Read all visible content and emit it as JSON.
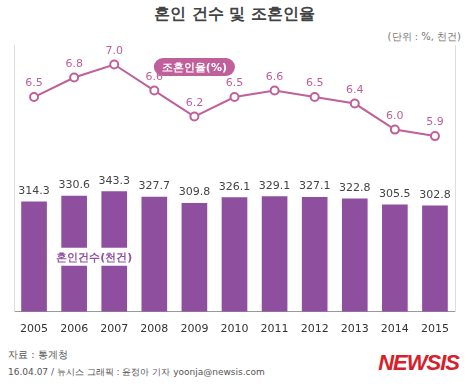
{
  "chart_data": {
    "type": "bar",
    "title": "혼인 건수 및 조혼인율",
    "unit_note": "(단위 : %, 천건)",
    "source": "자료 : 통계청",
    "credit": "16.04.07 / 뉴시스 그래픽 : 윤정아 기자 yoonja@newsis.com",
    "logo": "NEWSIS",
    "categories": [
      "2005",
      "2006",
      "2007",
      "2008",
      "2009",
      "2010",
      "2011",
      "2012",
      "2013",
      "2014",
      "2015"
    ],
    "series": [
      {
        "name": "혼인건수(천건)",
        "type": "bar",
        "color": "#8e4f9f",
        "values": [
          314.3,
          330.6,
          343.3,
          327.7,
          309.8,
          326.1,
          329.1,
          327.1,
          322.8,
          305.5,
          302.8
        ]
      },
      {
        "name": "조혼인율(%)",
        "type": "line",
        "axis": "y2",
        "color": "#c0609a",
        "marker": "circle",
        "values": [
          6.5,
          6.8,
          7.0,
          6.6,
          6.2,
          6.5,
          6.6,
          6.5,
          6.4,
          6.0,
          5.9
        ],
        "value_labels": [
          "6.5",
          "6.8",
          "7.0",
          "6.6",
          "6.2",
          "6.5",
          "6.6",
          "6.5",
          "6.4",
          "6.0",
          "5.9"
        ]
      }
    ],
    "ylim": [
      0,
      760
    ],
    "y2lim": [
      3.2,
      7.3
    ],
    "grid": false,
    "legend": false,
    "data_labels": true,
    "tick_labels": "x"
  }
}
